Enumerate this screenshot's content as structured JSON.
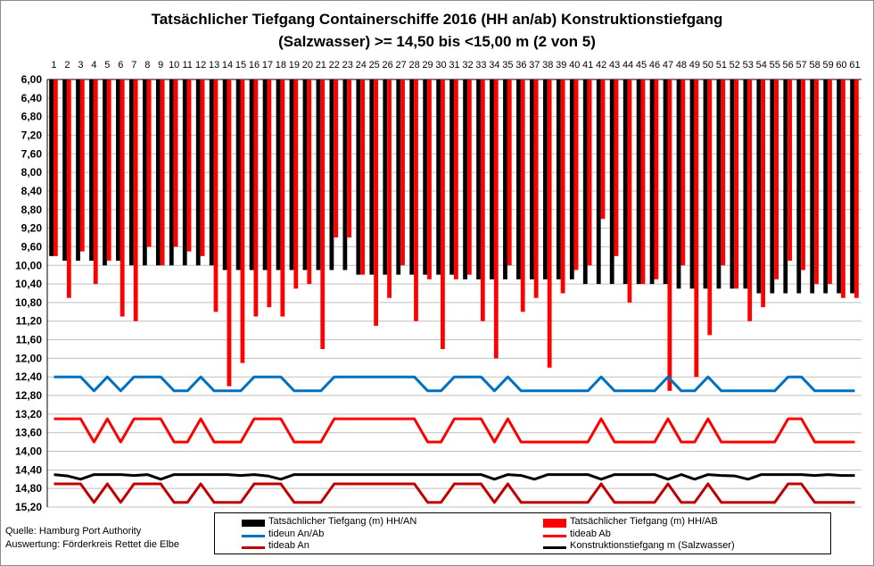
{
  "chart_data": {
    "type": "bar",
    "title": [
      "Tatsächlicher  Tiefgang Containerschiffe 2016 (HH an/ab)  Konstruktionstiefgang",
      "(Salzwasser) >= 14,50 bis <15,00 m (2 von 5)"
    ],
    "categories": [
      "1",
      "2",
      "3",
      "4",
      "5",
      "6",
      "7",
      "8",
      "9",
      "10",
      "11",
      "12",
      "13",
      "14",
      "15",
      "16",
      "17",
      "18",
      "19",
      "20",
      "21",
      "22",
      "23",
      "24",
      "25",
      "26",
      "27",
      "28",
      "29",
      "30",
      "31",
      "32",
      "33",
      "34",
      "35",
      "36",
      "37",
      "38",
      "39",
      "40",
      "41",
      "42",
      "43",
      "44",
      "45",
      "46",
      "47",
      "48",
      "49",
      "50",
      "51",
      "52",
      "53",
      "54",
      "55",
      "56",
      "57",
      "58",
      "59",
      "60",
      "61"
    ],
    "y_ticks": [
      "6,00",
      "6,40",
      "6,80",
      "7,20",
      "7,60",
      "8,00",
      "8,40",
      "8,80",
      "9,20",
      "9,60",
      "10,00",
      "10,40",
      "10,80",
      "11,20",
      "11,60",
      "12,00",
      "12,40",
      "12,80",
      "13,20",
      "13,60",
      "14,00",
      "14,40",
      "14,80",
      "15,20"
    ],
    "ylim": [
      6.0,
      15.2
    ],
    "y_inverted": true,
    "grid": "horizontal",
    "series": [
      {
        "name": "Tatsächlicher Tiefgang (m) HH/AN",
        "kind": "bar",
        "color": "#000000",
        "values": [
          9.8,
          9.9,
          9.9,
          9.9,
          10.0,
          9.9,
          10.0,
          10.0,
          10.0,
          10.0,
          10.0,
          10.0,
          10.0,
          10.1,
          10.1,
          10.1,
          10.1,
          10.1,
          10.1,
          10.1,
          10.1,
          10.1,
          10.1,
          10.2,
          10.2,
          10.2,
          10.2,
          10.2,
          10.2,
          10.2,
          10.2,
          10.3,
          10.3,
          10.3,
          10.3,
          10.3,
          10.3,
          10.3,
          10.3,
          10.3,
          10.4,
          10.4,
          10.4,
          10.4,
          10.4,
          10.4,
          10.4,
          10.5,
          10.5,
          10.5,
          10.5,
          10.5,
          10.5,
          10.6,
          10.6,
          10.6,
          10.6,
          10.6,
          10.6,
          10.6,
          10.6
        ]
      },
      {
        "name": "Tatsächlicher Tiefgang (m) HH/AB",
        "kind": "bar",
        "color": "#ff0000",
        "values": [
          9.8,
          10.7,
          9.7,
          10.4,
          9.9,
          11.1,
          11.2,
          9.6,
          10.0,
          9.6,
          9.7,
          9.8,
          11.0,
          12.6,
          12.1,
          11.1,
          10.9,
          11.1,
          10.5,
          10.4,
          11.8,
          9.4,
          9.4,
          10.2,
          11.3,
          10.7,
          10.0,
          11.2,
          10.3,
          11.8,
          10.3,
          10.2,
          11.2,
          12.0,
          10.0,
          11.0,
          10.7,
          12.2,
          10.6,
          10.1,
          10.0,
          9.0,
          9.8,
          10.8,
          10.4,
          10.3,
          12.7,
          10.0,
          12.4,
          11.5,
          10.0,
          10.5,
          11.2,
          10.9,
          10.3,
          9.9,
          10.1,
          10.4,
          10.4,
          10.7,
          10.7
        ]
      },
      {
        "name": "tideun An/Ab",
        "kind": "line",
        "color": "#0070c0",
        "values": [
          12.4,
          12.4,
          12.4,
          12.7,
          12.4,
          12.7,
          12.4,
          12.4,
          12.4,
          12.7,
          12.7,
          12.4,
          12.7,
          12.7,
          12.7,
          12.4,
          12.4,
          12.4,
          12.7,
          12.7,
          12.7,
          12.4,
          12.4,
          12.4,
          12.4,
          12.4,
          12.4,
          12.4,
          12.7,
          12.7,
          12.4,
          12.4,
          12.4,
          12.7,
          12.4,
          12.7,
          12.7,
          12.7,
          12.7,
          12.7,
          12.7,
          12.4,
          12.7,
          12.7,
          12.7,
          12.7,
          12.4,
          12.7,
          12.7,
          12.4,
          12.7,
          12.7,
          12.7,
          12.7,
          12.7,
          12.4,
          12.4,
          12.7,
          12.7,
          12.7,
          12.7
        ]
      },
      {
        "name": "tideab Ab",
        "kind": "line",
        "color": "#ff0000",
        "values": [
          13.3,
          13.3,
          13.3,
          13.8,
          13.3,
          13.8,
          13.3,
          13.3,
          13.3,
          13.8,
          13.8,
          13.3,
          13.8,
          13.8,
          13.8,
          13.3,
          13.3,
          13.3,
          13.8,
          13.8,
          13.8,
          13.3,
          13.3,
          13.3,
          13.3,
          13.3,
          13.3,
          13.3,
          13.8,
          13.8,
          13.3,
          13.3,
          13.3,
          13.8,
          13.3,
          13.8,
          13.8,
          13.8,
          13.8,
          13.8,
          13.8,
          13.3,
          13.8,
          13.8,
          13.8,
          13.8,
          13.3,
          13.8,
          13.8,
          13.3,
          13.8,
          13.8,
          13.8,
          13.8,
          13.8,
          13.3,
          13.3,
          13.8,
          13.8,
          13.8,
          13.8
        ]
      },
      {
        "name": "tideab An",
        "kind": "line",
        "color": "#c00000",
        "values": [
          14.7,
          14.7,
          14.7,
          15.1,
          14.7,
          15.1,
          14.7,
          14.7,
          14.7,
          15.1,
          15.1,
          14.7,
          15.1,
          15.1,
          15.1,
          14.7,
          14.7,
          14.7,
          15.1,
          15.1,
          15.1,
          14.7,
          14.7,
          14.7,
          14.7,
          14.7,
          14.7,
          14.7,
          15.1,
          15.1,
          14.7,
          14.7,
          14.7,
          15.1,
          14.7,
          15.1,
          15.1,
          15.1,
          15.1,
          15.1,
          15.1,
          14.7,
          15.1,
          15.1,
          15.1,
          15.1,
          14.7,
          15.1,
          15.1,
          14.7,
          15.1,
          15.1,
          15.1,
          15.1,
          15.1,
          14.7,
          14.7,
          15.1,
          15.1,
          15.1,
          15.1
        ]
      },
      {
        "name": "Konstruktionstiefgang  m (Salzwasser)",
        "kind": "line",
        "color": "#000000",
        "values": [
          14.5,
          14.53,
          14.6,
          14.5,
          14.5,
          14.5,
          14.52,
          14.5,
          14.6,
          14.5,
          14.5,
          14.5,
          14.5,
          14.5,
          14.52,
          14.5,
          14.53,
          14.6,
          14.5,
          14.5,
          14.5,
          14.5,
          14.5,
          14.5,
          14.5,
          14.5,
          14.5,
          14.5,
          14.5,
          14.5,
          14.5,
          14.5,
          14.5,
          14.6,
          14.5,
          14.52,
          14.6,
          14.5,
          14.5,
          14.5,
          14.5,
          14.6,
          14.5,
          14.5,
          14.5,
          14.5,
          14.6,
          14.5,
          14.6,
          14.5,
          14.52,
          14.53,
          14.6,
          14.5,
          14.5,
          14.5,
          14.5,
          14.52,
          14.5,
          14.52,
          14.52
        ]
      }
    ],
    "legend_placement": "bottom"
  },
  "source": [
    "Quelle: Hamburg Port Authority",
    "Auswertung: Förderkreis Rettet die Elbe"
  ]
}
